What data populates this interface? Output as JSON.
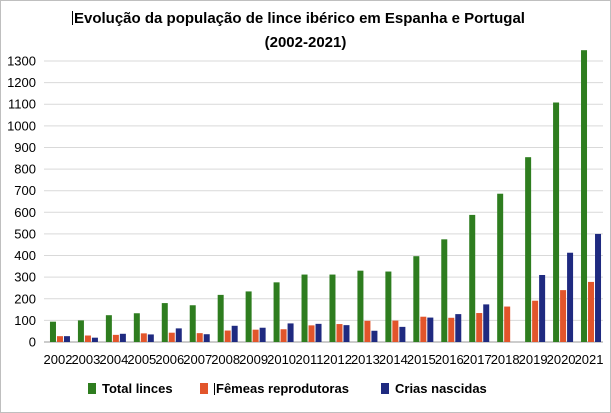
{
  "chart_data": {
    "type": "bar",
    "title": "Evolução da população de lince ibérico em Espanha e Portugal",
    "subtitle": "(2002-2021)",
    "xlabel": "",
    "ylabel": "",
    "ylim": [
      0,
      1350
    ],
    "yticks": [
      0,
      100,
      200,
      300,
      400,
      500,
      600,
      700,
      800,
      900,
      1000,
      1100,
      1200,
      1300
    ],
    "grid": true,
    "legend_position": "bottom",
    "categories": [
      "2002",
      "2003",
      "2004",
      "2005",
      "2006",
      "2007",
      "2008",
      "2009",
      "2010",
      "2011",
      "2012",
      "2013",
      "2014",
      "2015",
      "2016",
      "2017",
      "2018",
      "2019",
      "2020",
      "2021"
    ],
    "series": [
      {
        "name": "Total linces",
        "color": "#2e7d1f",
        "values": [
          94,
          100,
          124,
          133,
          180,
          170,
          218,
          234,
          276,
          312,
          312,
          330,
          326,
          397,
          475,
          588,
          686,
          855,
          1108,
          1350
        ]
      },
      {
        "name": "Fêmeas reprodutoras",
        "color": "#e2552b",
        "values": [
          27,
          30,
          33,
          40,
          43,
          41,
          53,
          57,
          59,
          77,
          83,
          98,
          99,
          117,
          112,
          134,
          164,
          191,
          240,
          278
        ]
      },
      {
        "name": "Crias nascidas",
        "color": "#1f2a80",
        "values": [
          27,
          20,
          38,
          35,
          63,
          36,
          75,
          66,
          86,
          84,
          78,
          52,
          70,
          113,
          129,
          174,
          0,
          310,
          413,
          500
        ]
      }
    ]
  }
}
